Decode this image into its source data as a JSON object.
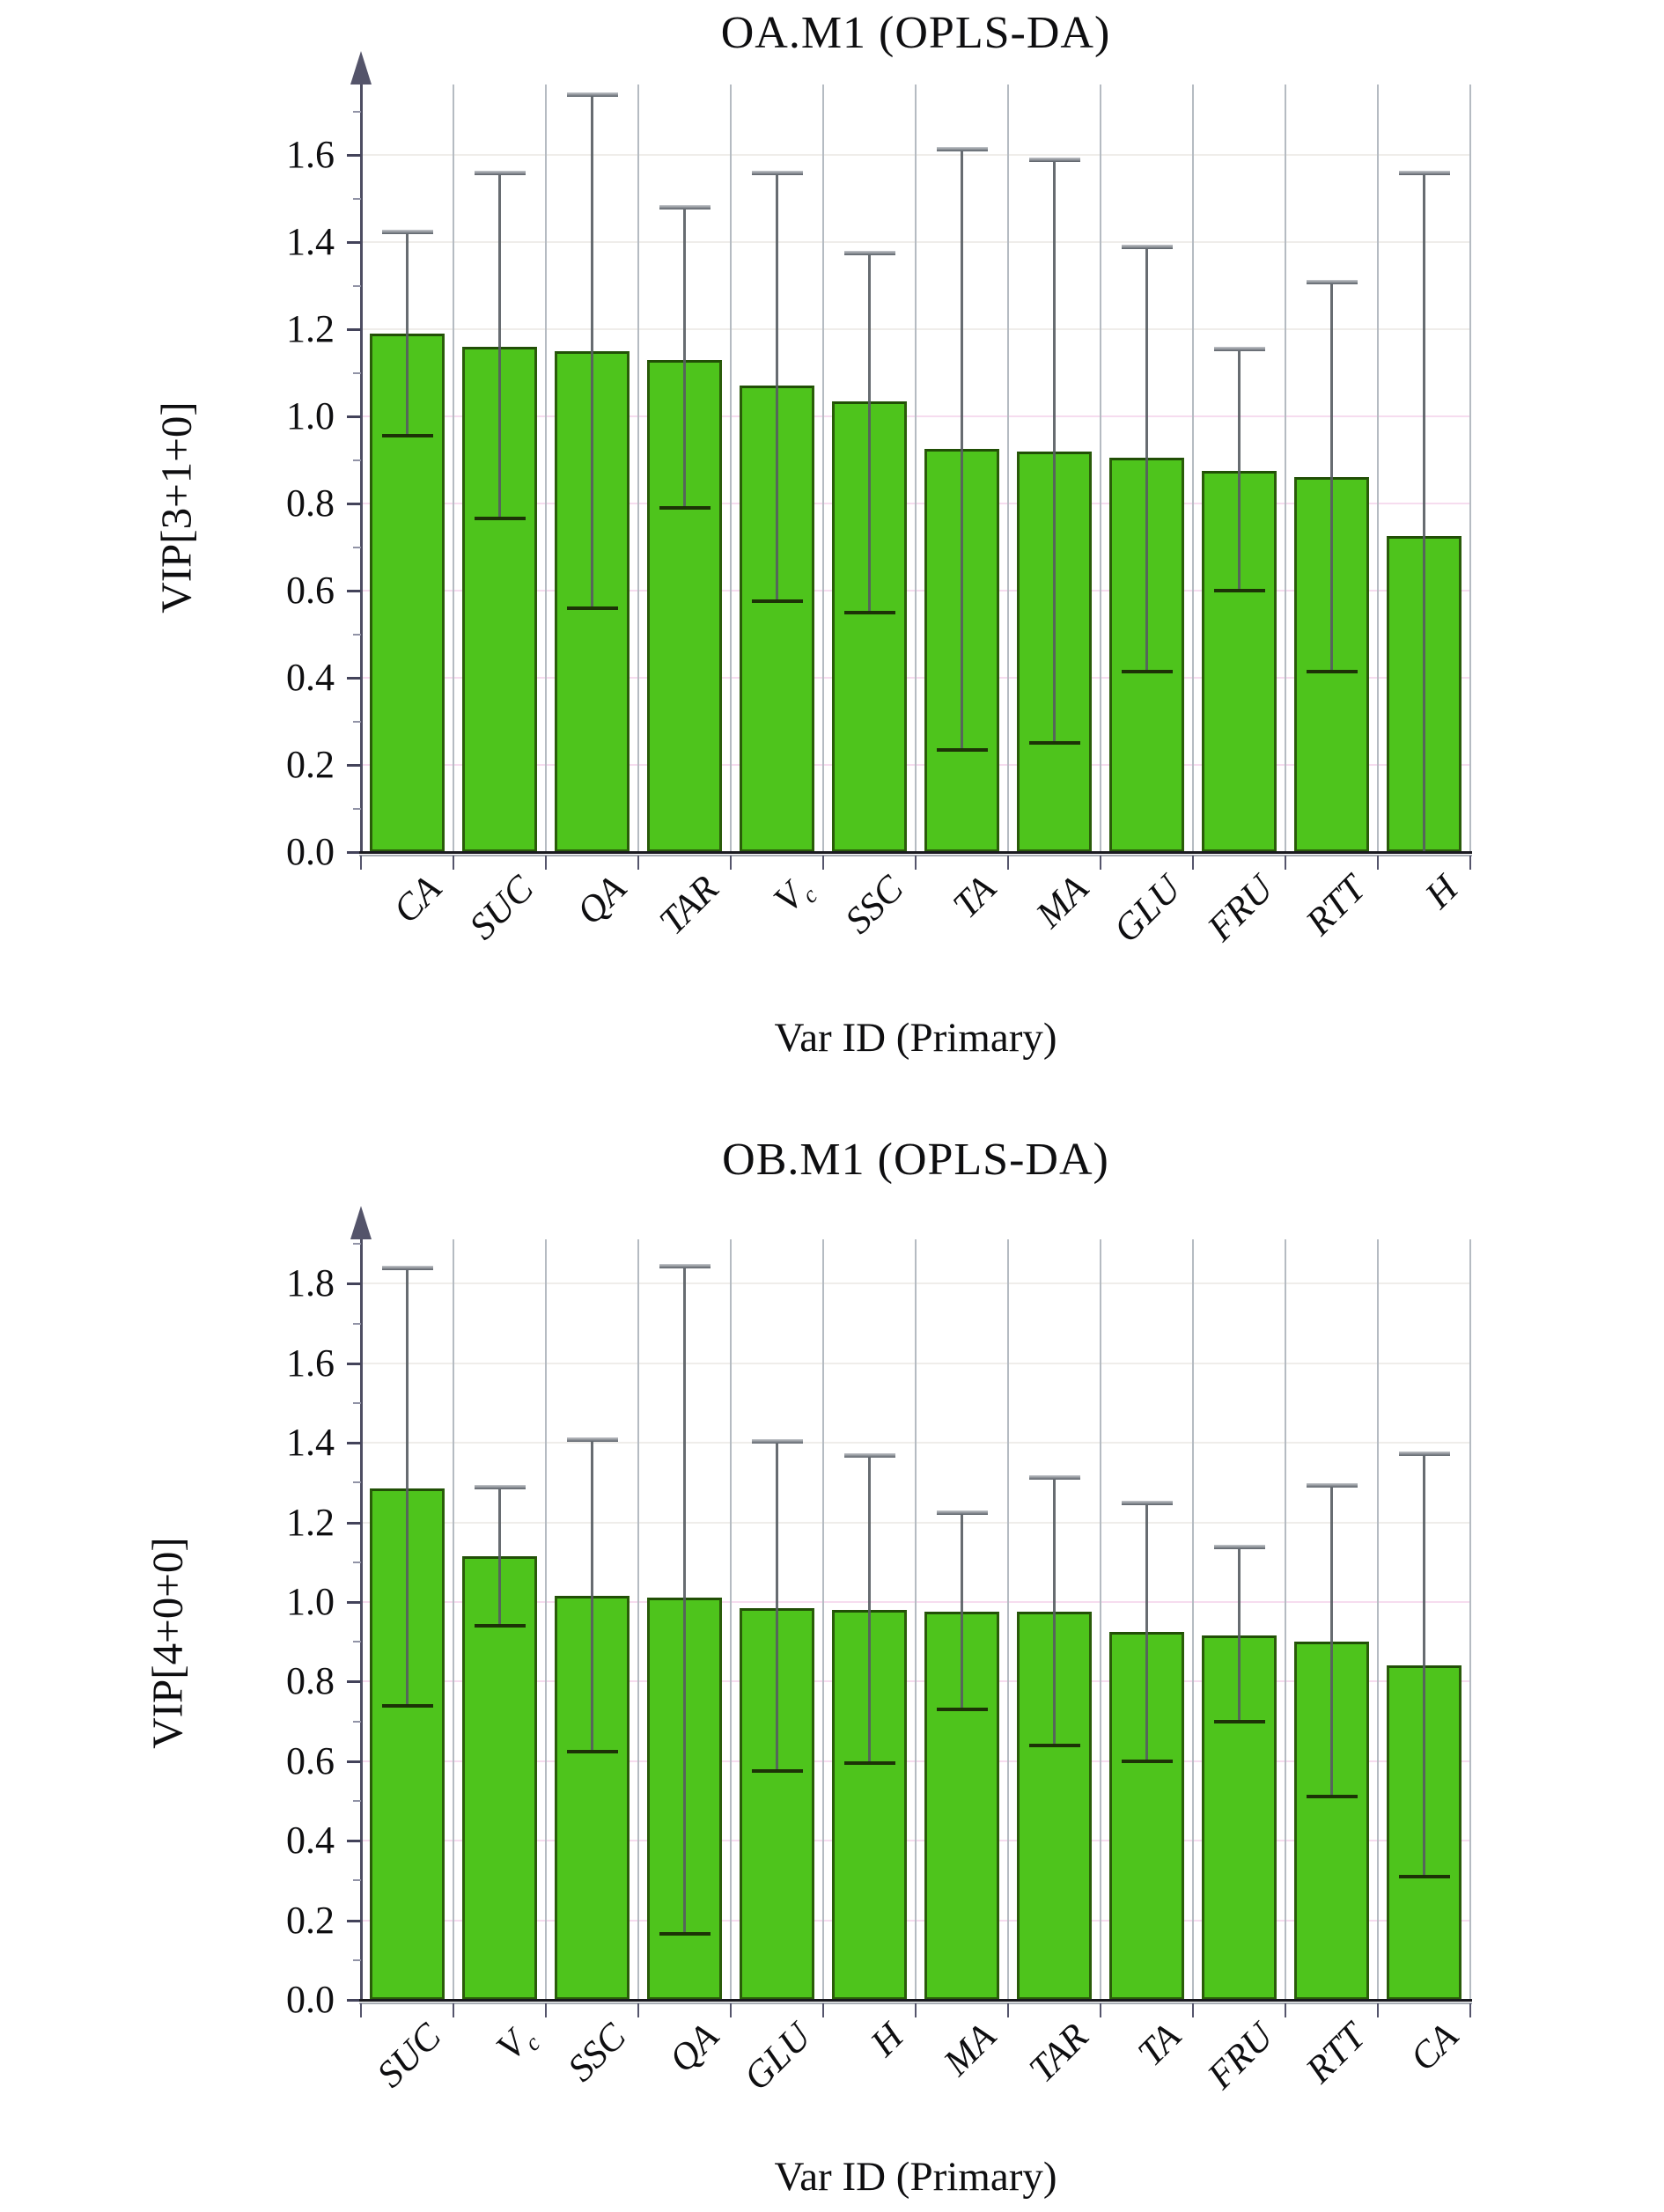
{
  "figure": {
    "background": "#ffffff",
    "x_axis_title": "Var ID (Primary)"
  },
  "colors": {
    "bar_fill": "#4ec41c",
    "bar_border": "#2a5c0a",
    "error_bar": "#565c62",
    "axis": "#4d4d62",
    "grid_gray": "#efedea",
    "grid_pink": "#f6dcef",
    "grid_vertical": "#b5bbc2",
    "text": "#0e0e10"
  },
  "chart_data": [
    {
      "type": "bar",
      "title": "OA.M1 (OPLS-DA)",
      "xlabel": "Var ID (Primary)",
      "ylabel": "VIP[3+1+0]",
      "ylim": [
        0.0,
        1.77
      ],
      "ytick_step": 0.2,
      "ytick_top_label": 1.6,
      "grid": "on",
      "legend_position": "none",
      "categories": [
        "CA",
        "SUC",
        "QA",
        "TAR",
        "V~c~",
        "SSC",
        "TA",
        "MA",
        "GLU",
        "FRU",
        "RTT",
        "H"
      ],
      "values": [
        1.19,
        1.16,
        1.15,
        1.13,
        1.07,
        1.035,
        0.925,
        0.92,
        0.905,
        0.875,
        0.86,
        0.725
      ],
      "error_low": [
        0.955,
        0.765,
        0.56,
        0.79,
        0.575,
        0.55,
        0.235,
        0.25,
        0.415,
        0.6,
        0.415,
        0.0
      ],
      "error_high": [
        1.425,
        1.56,
        1.74,
        1.48,
        1.56,
        1.375,
        1.615,
        1.59,
        1.39,
        1.155,
        1.31,
        1.56
      ]
    },
    {
      "type": "bar",
      "title": "OB.M1 (OPLS-DA)",
      "xlabel": "Var ID (Primary)",
      "ylabel": "VIP[4+0+0]",
      "ylim": [
        0.0,
        1.91
      ],
      "ytick_step": 0.2,
      "ytick_top_label": 1.8,
      "grid": "on",
      "legend_position": "none",
      "categories": [
        "SUC",
        "V~c~",
        "SSC",
        "QA",
        "GLU",
        "H",
        "MA",
        "TAR",
        "TA",
        "FRU",
        "RTT",
        "CA"
      ],
      "values": [
        1.285,
        1.115,
        1.015,
        1.01,
        0.985,
        0.98,
        0.975,
        0.975,
        0.925,
        0.915,
        0.9,
        0.84
      ],
      "error_low": [
        0.74,
        0.94,
        0.625,
        0.165,
        0.575,
        0.595,
        0.73,
        0.64,
        0.6,
        0.7,
        0.51,
        0.31
      ],
      "error_high": [
        1.84,
        1.29,
        1.41,
        1.845,
        1.405,
        1.37,
        1.225,
        1.315,
        1.25,
        1.14,
        1.295,
        1.375
      ]
    }
  ]
}
